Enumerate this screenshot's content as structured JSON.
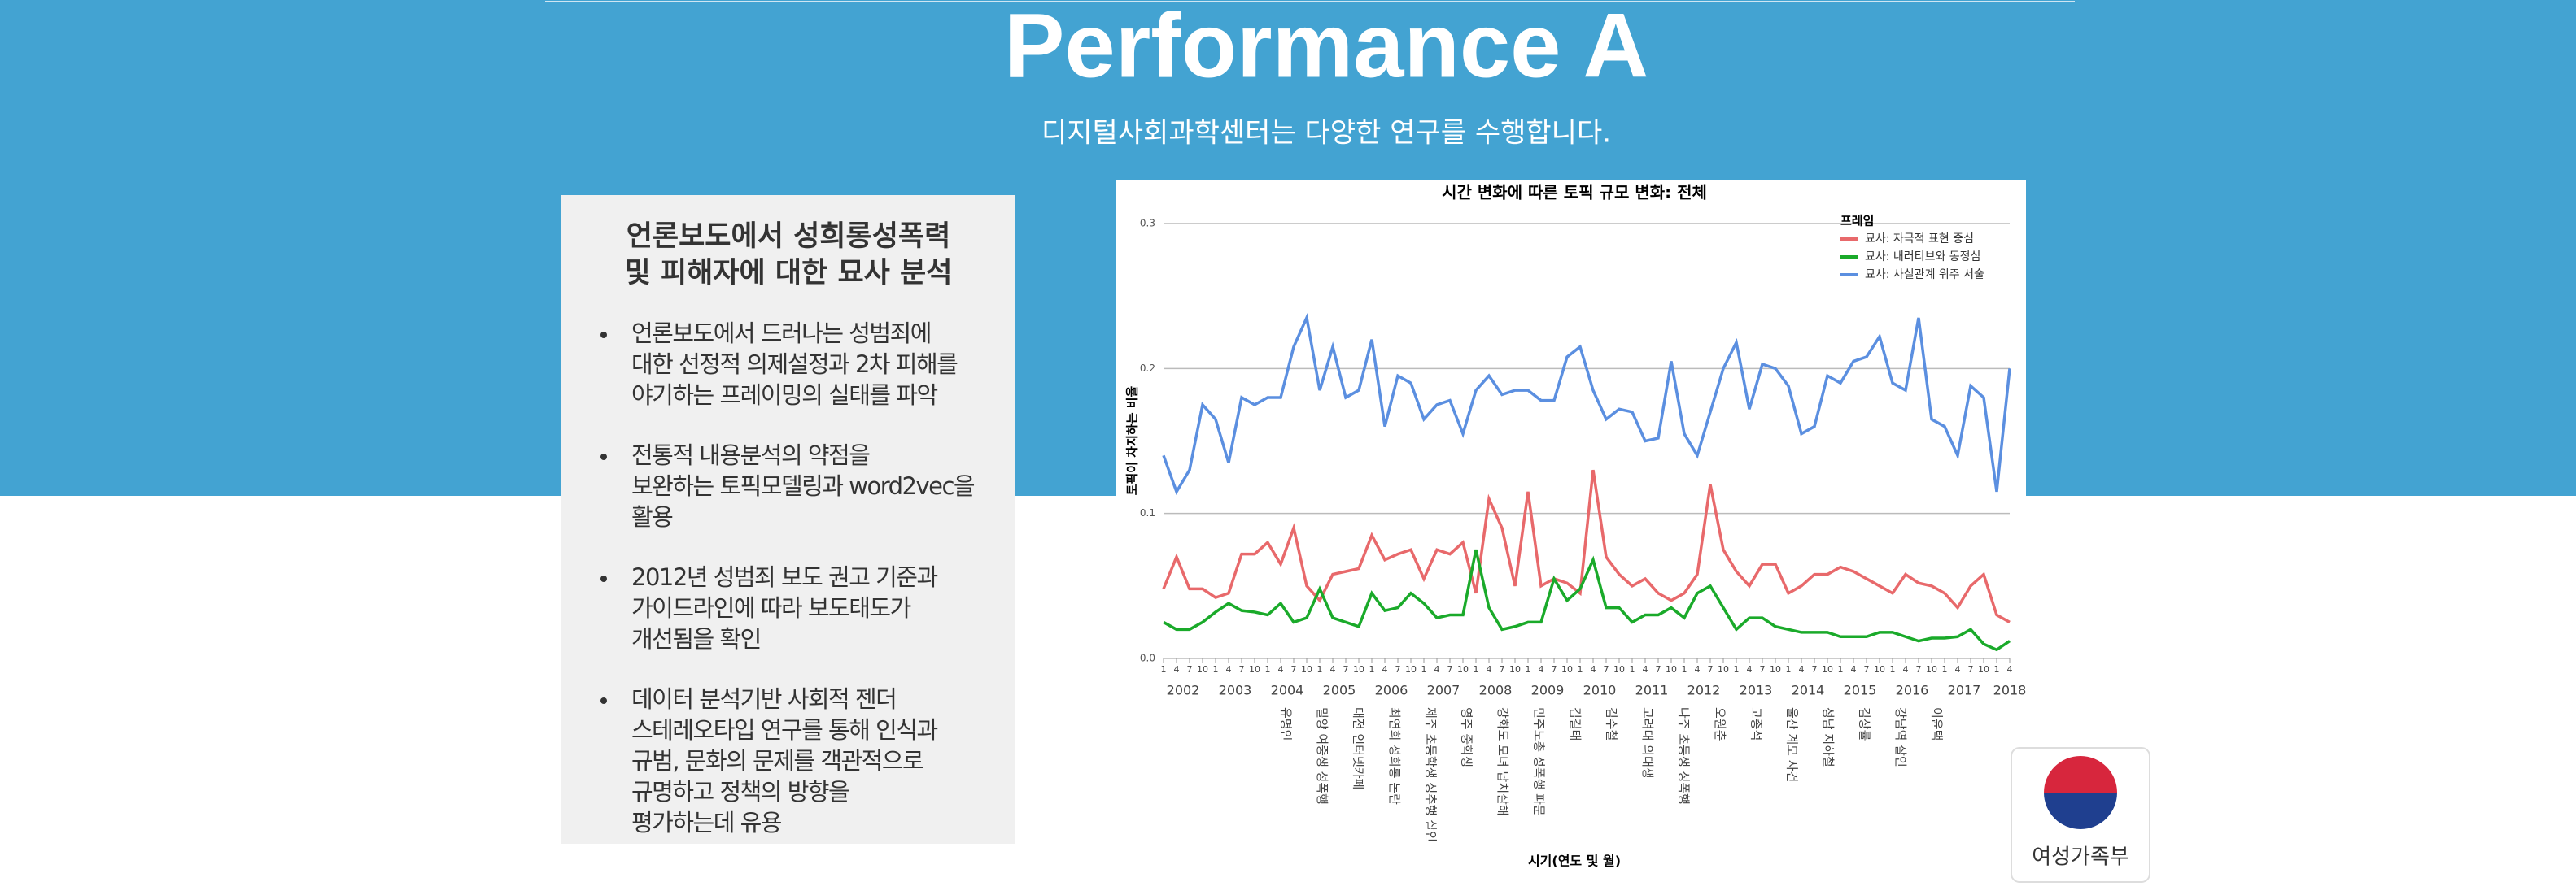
{
  "header": {
    "title": "Performance A",
    "subtitle": "디지털사회과학센터는 다양한 연구를 수행합니다."
  },
  "card": {
    "title": [
      "언론보도에서 성희롱성폭력",
      "및 피해자에 대한 묘사 분석"
    ],
    "bullets": [
      [
        "언론보도에서 드러나는 성범죄에",
        "대한 선정적 의제설정과 2차 피해를",
        "야기하는 프레이밍의 실태를 파악"
      ],
      [
        "전통적 내용분석의 약점을",
        "보완하는 토픽모델링과 word2vec을",
        "활용"
      ],
      [
        "2012년 성범죄 보도 권고 기준과",
        "가이드라인에 따라 보도태도가",
        "개선됨을 확인"
      ],
      [
        "데이터 분석기반 사회적 젠더",
        "스테레오타입 연구를 통해 인식과",
        "규범, 문화의 문제를 객관적으로",
        "규명하고 정책의 방향을",
        "평가하는데 유용"
      ]
    ]
  },
  "logo": {
    "label": "여성가족부"
  },
  "chart_data": {
    "type": "line",
    "title": "시간 변화에 따른 토픽 규모 변화: 전체",
    "x_label": "시기(연도 및 월)",
    "y_label": "토픽이 차지하는 비율",
    "legend_title": "프레임",
    "legend": "upper right",
    "grid": true,
    "categories": [
      "1",
      "4",
      "7",
      "10",
      "1",
      "4",
      "7",
      "10",
      "1",
      "4",
      "7",
      "10",
      "1",
      "4",
      "7",
      "10",
      "1",
      "4",
      "7",
      "10",
      "1",
      "4",
      "7",
      "10",
      "1",
      "4",
      "7",
      "10",
      "1",
      "4",
      "7",
      "10",
      "1",
      "4",
      "7",
      "10",
      "1",
      "4",
      "7",
      "10",
      "1",
      "4",
      "7",
      "10",
      "1",
      "4",
      "7",
      "10",
      "1",
      "4",
      "7",
      "10",
      "1",
      "4",
      "7",
      "10",
      "1",
      "4",
      "7",
      "10",
      "1",
      "4",
      "7",
      "10",
      "1",
      "4"
    ],
    "years": [
      "2002",
      "2003",
      "2004",
      "2005",
      "2006",
      "2007",
      "2008",
      "2009",
      "2010",
      "2011",
      "2012",
      "2013",
      "2014",
      "2015",
      "2016",
      "2017",
      "2018"
    ],
    "ylim": [
      0,
      0.3
    ],
    "yticks": [
      {
        "value": 0,
        "label": "0.0"
      },
      0.1,
      0.2,
      0.3
    ],
    "series": [
      {
        "name": "묘사: 자극적 표현 중심",
        "color": "#e8696b",
        "values": [
          0.048,
          0.07,
          0.048,
          0.048,
          0.042,
          0.045,
          0.072,
          0.072,
          0.08,
          0.065,
          0.09,
          0.05,
          0.04,
          0.058,
          0.06,
          0.062,
          0.085,
          0.068,
          0.072,
          0.075,
          0.055,
          0.075,
          0.072,
          0.08,
          0.045,
          0.11,
          0.09,
          0.05,
          0.115,
          0.05,
          0.055,
          0.052,
          0.045,
          0.13,
          0.07,
          0.058,
          0.05,
          0.055,
          0.045,
          0.04,
          0.045,
          0.058,
          0.12,
          0.075,
          0.06,
          0.05,
          0.065,
          0.065,
          0.045,
          0.05,
          0.058,
          0.058,
          0.063,
          0.06,
          0.055,
          0.05,
          0.045,
          0.058,
          0.052,
          0.05,
          0.045,
          0.035,
          0.05,
          0.058,
          0.03,
          0.025
        ]
      },
      {
        "name": "묘사: 내러티브와 동정심",
        "color": "#1aaa2a",
        "values": [
          0.025,
          0.02,
          0.02,
          0.025,
          0.032,
          0.038,
          0.033,
          0.032,
          0.03,
          0.038,
          0.025,
          0.028,
          0.048,
          0.028,
          0.025,
          0.022,
          0.045,
          0.033,
          0.035,
          0.045,
          0.038,
          0.028,
          0.03,
          0.03,
          0.075,
          0.035,
          0.02,
          0.022,
          0.025,
          0.025,
          0.055,
          0.04,
          0.048,
          0.068,
          0.035,
          0.035,
          0.025,
          0.03,
          0.03,
          0.035,
          0.028,
          0.045,
          0.05,
          0.035,
          0.02,
          0.028,
          0.028,
          0.022,
          0.02,
          0.018,
          0.018,
          0.018,
          0.015,
          0.015,
          0.015,
          0.018,
          0.018,
          0.015,
          0.012,
          0.014,
          0.014,
          0.015,
          0.02,
          0.01,
          0.006,
          0.012
        ]
      },
      {
        "name": "묘사: 사실관계 위주 서술",
        "color": "#5b8fe0",
        "values": [
          0.14,
          0.115,
          0.13,
          0.175,
          0.165,
          0.135,
          0.18,
          0.175,
          0.18,
          0.18,
          0.215,
          0.235,
          0.185,
          0.215,
          0.18,
          0.185,
          0.22,
          0.16,
          0.195,
          0.19,
          0.165,
          0.175,
          0.178,
          0.155,
          0.185,
          0.195,
          0.182,
          0.185,
          0.185,
          0.178,
          0.178,
          0.208,
          0.215,
          0.185,
          0.165,
          0.172,
          0.17,
          0.15,
          0.152,
          0.205,
          0.155,
          0.14,
          0.17,
          0.2,
          0.218,
          0.172,
          0.203,
          0.2,
          0.188,
          0.155,
          0.16,
          0.195,
          0.19,
          0.205,
          0.208,
          0.222,
          0.19,
          0.185,
          0.235,
          0.165,
          0.16,
          0.14,
          0.188,
          0.18,
          0.115,
          0.2
        ]
      }
    ],
    "annotations": [
      "유명인",
      "밀양 여중생 성폭행",
      "대전 인터넷카페",
      "최연희 성희롱 논란",
      "제주 초등학생 성추행 살인",
      "영주 중학생",
      "강화도 모녀 납치살해",
      "민주노총 성폭행 파문",
      "김길태",
      "김수철",
      "고려대 의대생",
      "나주 초등생 성폭행",
      "오원춘",
      "고종석",
      "울산 계모 사건",
      "성남 지하철",
      "김상률",
      "강남역 살인",
      "이윤택"
    ]
  }
}
